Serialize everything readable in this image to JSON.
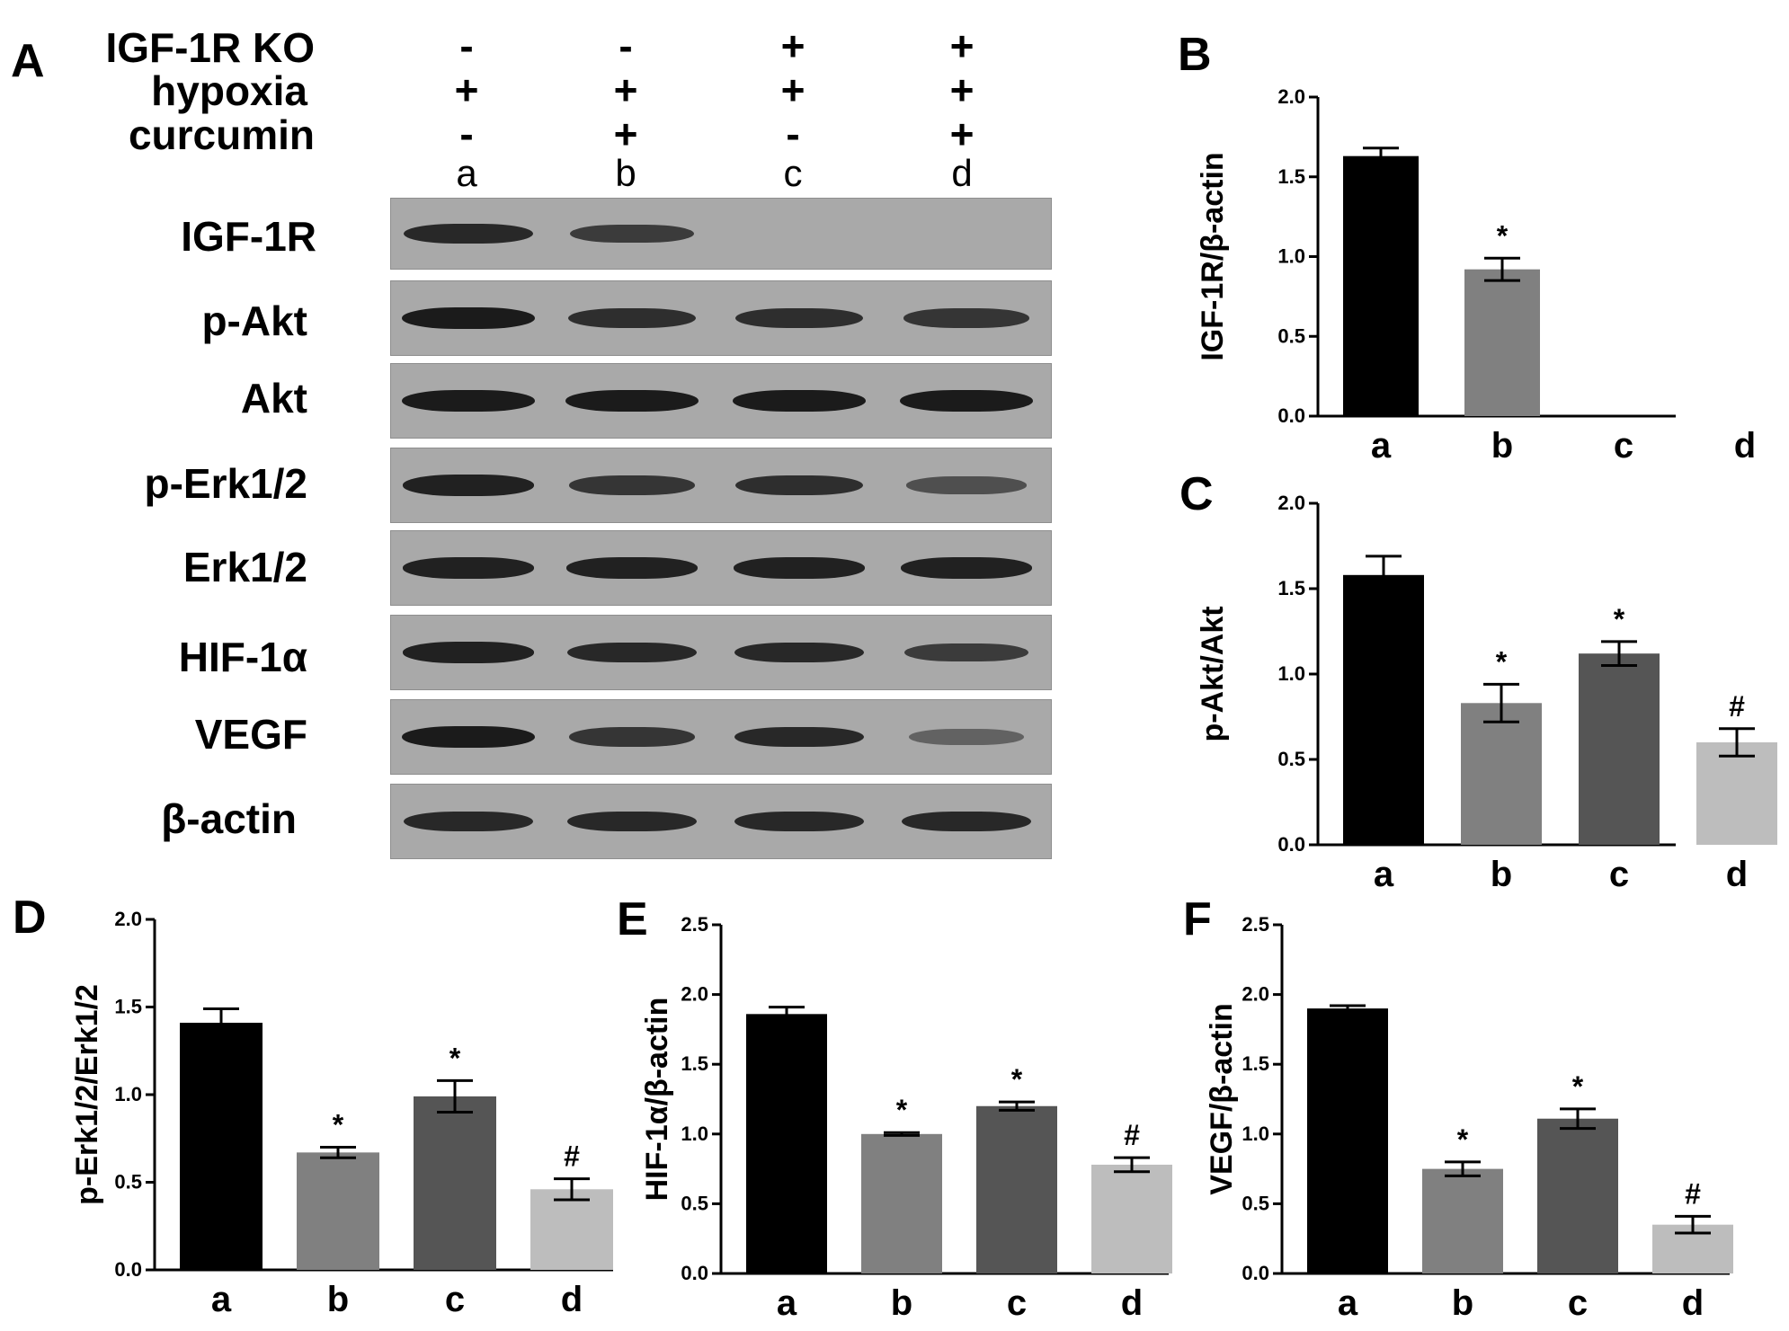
{
  "panel_labels": {
    "A": "A",
    "B": "B",
    "C": "C",
    "D": "D",
    "E": "E",
    "F": "F"
  },
  "conditions": [
    {
      "label": "IGF-1R KO",
      "values": [
        "-",
        "-",
        "+",
        "+"
      ]
    },
    {
      "label": "hypoxia",
      "values": [
        "+",
        "+",
        "+",
        "+"
      ]
    },
    {
      "label": "curcumin",
      "values": [
        "-",
        "+",
        "-",
        "+"
      ]
    }
  ],
  "lanes": [
    "a",
    "b",
    "c",
    "d"
  ],
  "blots": [
    {
      "label": "IGF-1R",
      "intensity": [
        0.85,
        0.7,
        0,
        0
      ]
    },
    {
      "label": "p-Akt",
      "intensity": [
        0.95,
        0.8,
        0.8,
        0.75
      ]
    },
    {
      "label": "Akt",
      "intensity": [
        0.95,
        0.95,
        0.95,
        0.95
      ]
    },
    {
      "label": "p-Erk1/2",
      "intensity": [
        0.9,
        0.75,
        0.8,
        0.55
      ]
    },
    {
      "label": "Erk1/2",
      "intensity": [
        0.9,
        0.9,
        0.9,
        0.9
      ]
    },
    {
      "label": "HIF-1α",
      "intensity": [
        0.9,
        0.85,
        0.85,
        0.7
      ]
    },
    {
      "label": "VEGF",
      "intensity": [
        0.95,
        0.75,
        0.85,
        0.4
      ]
    },
    {
      "label": "β-actin",
      "intensity": [
        0.85,
        0.85,
        0.85,
        0.85
      ]
    }
  ],
  "colors": {
    "a": "#000000",
    "b": "#808080",
    "c": "#555555",
    "d": "#bdbdbd"
  },
  "chart_data": [
    {
      "panel": "B",
      "type": "bar",
      "categories": [
        "a",
        "b",
        "c",
        "d"
      ],
      "values": [
        1.63,
        0.92,
        0,
        0
      ],
      "errors": [
        0.05,
        0.07,
        0,
        0
      ],
      "significance": [
        "",
        "*",
        "",
        ""
      ],
      "ylabel": "IGF-1R/β-actin",
      "ylim": [
        0,
        2.0
      ],
      "yticks": [
        "0.0",
        "0.5",
        "1.0",
        "1.5",
        "2.0"
      ]
    },
    {
      "panel": "C",
      "type": "bar",
      "categories": [
        "a",
        "b",
        "c",
        "d"
      ],
      "values": [
        1.58,
        0.83,
        1.12,
        0.6
      ],
      "errors": [
        0.11,
        0.11,
        0.07,
        0.08
      ],
      "significance": [
        "",
        "*",
        "*",
        "#"
      ],
      "ylabel": "p-Akt/Akt",
      "ylim": [
        0,
        2.0
      ],
      "yticks": [
        "0.0",
        "0.5",
        "1.0",
        "1.5",
        "2.0"
      ]
    },
    {
      "panel": "D",
      "type": "bar",
      "categories": [
        "a",
        "b",
        "c",
        "d"
      ],
      "values": [
        1.41,
        0.67,
        0.99,
        0.46
      ],
      "errors": [
        0.08,
        0.03,
        0.09,
        0.06
      ],
      "significance": [
        "",
        "*",
        "*",
        "#"
      ],
      "ylabel": "p-Erk1/2/Erk1/2",
      "ylim": [
        0,
        2.0
      ],
      "yticks": [
        "0.0",
        "0.5",
        "1.0",
        "1.5",
        "2.0"
      ]
    },
    {
      "panel": "E",
      "type": "bar",
      "categories": [
        "a",
        "b",
        "c",
        "d"
      ],
      "values": [
        1.86,
        1.0,
        1.2,
        0.78
      ],
      "errors": [
        0.05,
        0.01,
        0.03,
        0.05
      ],
      "significance": [
        "",
        "*",
        "*",
        "#"
      ],
      "ylabel": "HIF-1α/β-actin",
      "ylim": [
        0,
        2.5
      ],
      "yticks": [
        "0.0",
        "0.5",
        "1.0",
        "1.5",
        "2.0",
        "2.5"
      ]
    },
    {
      "panel": "F",
      "type": "bar",
      "categories": [
        "a",
        "b",
        "c",
        "d"
      ],
      "values": [
        1.9,
        0.75,
        1.11,
        0.35
      ],
      "errors": [
        0.02,
        0.05,
        0.07,
        0.06
      ],
      "significance": [
        "",
        "*",
        "*",
        "#"
      ],
      "ylabel": "VEGF/β-actin",
      "ylim": [
        0,
        2.5
      ],
      "yticks": [
        "0.0",
        "0.5",
        "1.0",
        "1.5",
        "2.0",
        "2.5"
      ]
    }
  ]
}
